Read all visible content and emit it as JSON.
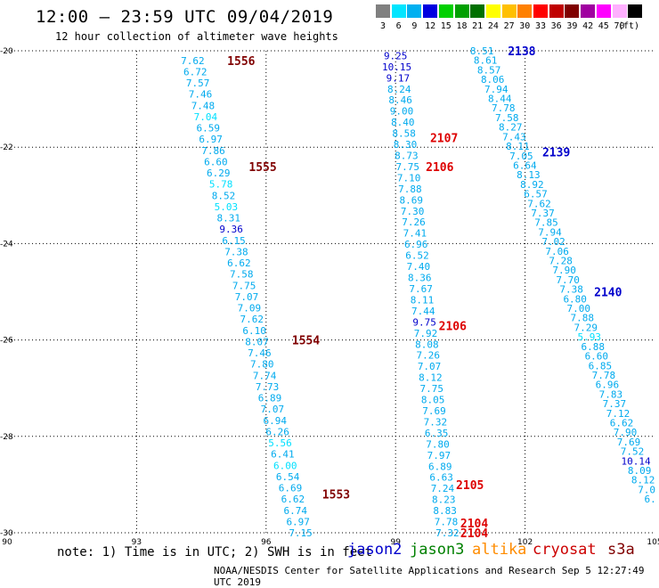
{
  "header": {
    "title": "12:00 – 23:59 UTC 09/04/2019",
    "subtitle": "12 hour collection of altimeter wave heights"
  },
  "legend": {
    "unit": "(ft)",
    "bins": [
      {
        "label": "3",
        "color": "#808080"
      },
      {
        "label": "6",
        "color": "#00e5ff"
      },
      {
        "label": "9",
        "color": "#00b0f0"
      },
      {
        "label": "12",
        "color": "#0000e0"
      },
      {
        "label": "15",
        "color": "#00d000"
      },
      {
        "label": "18",
        "color": "#00a000"
      },
      {
        "label": "21",
        "color": "#007000"
      },
      {
        "label": "24",
        "color": "#ffff00"
      },
      {
        "label": "27",
        "color": "#ffc000"
      },
      {
        "label": "30",
        "color": "#ff8000"
      },
      {
        "label": "33",
        "color": "#ff0000"
      },
      {
        "label": "36",
        "color": "#c00000"
      },
      {
        "label": "39",
        "color": "#800000"
      },
      {
        "label": "42",
        "color": "#a000a0"
      },
      {
        "label": "45",
        "color": "#ff00ff"
      },
      {
        "label": "70",
        "color": "#ffb0ff"
      },
      {
        "label": "",
        "color": "#000000"
      }
    ]
  },
  "footer": {
    "note": "note:  1) Time is in UTC;  2) SWH is in feet",
    "satellites": [
      {
        "name": "jason2",
        "color": "#0000cc"
      },
      {
        "name": "jason3",
        "color": "#008000"
      },
      {
        "name": "altika",
        "color": "#ff8c00"
      },
      {
        "name": "cryosat",
        "color": "#cc0000"
      },
      {
        "name": "s3a",
        "color": "#800000"
      }
    ],
    "credit": "NOAA/NESDIS Center for Satellite Applications and Research    Sep  5 12:27:49 UTC 2019"
  },
  "chart_data": {
    "type": "scatter",
    "xlim": [
      90,
      105
    ],
    "ylim": [
      -30,
      -20
    ],
    "xticks": [
      90,
      93,
      96,
      99,
      102,
      105
    ],
    "yticks": [
      -20,
      -22,
      -24,
      -26,
      -28,
      -30
    ],
    "grid": true,
    "colors": {
      "c1": "#00e0ff",
      "c2": "#00aaee",
      "c3": "#0000cc"
    },
    "passes": [
      {
        "id": "1556",
        "x": 95.1,
        "y": -20.2,
        "color": "#800000"
      },
      {
        "id": "1555",
        "x": 95.6,
        "y": -22.4,
        "color": "#800000"
      },
      {
        "id": "1554",
        "x": 96.6,
        "y": -26.0,
        "color": "#800000"
      },
      {
        "id": "1553",
        "x": 97.3,
        "y": -29.2,
        "color": "#800000"
      },
      {
        "id": "2138",
        "x": 101.6,
        "y": -20.0,
        "color": "#0000cc"
      },
      {
        "id": "2139",
        "x": 102.4,
        "y": -22.1,
        "color": "#0000cc"
      },
      {
        "id": "2140",
        "x": 103.6,
        "y": -25.0,
        "color": "#0000cc"
      },
      {
        "id": "2107",
        "x": 99.8,
        "y": -21.8,
        "color": "#dd0000"
      },
      {
        "id": "2106",
        "x": 99.7,
        "y": -22.4,
        "color": "#dd0000"
      },
      {
        "id": "2106",
        "x": 100.0,
        "y": -25.7,
        "color": "#dd0000"
      },
      {
        "id": "2105",
        "x": 100.4,
        "y": -29.0,
        "color": "#dd0000"
      },
      {
        "id": "2104",
        "x": 100.5,
        "y": -29.8,
        "color": "#dd0000"
      },
      {
        "id": "2104",
        "x": 100.5,
        "y": -30.0,
        "color": "#dd0000"
      }
    ],
    "tracks": [
      {
        "name": "track-1556",
        "x0": 94.3,
        "x1": 96.8,
        "y0": -20.2,
        "y1": -30.0,
        "color": "c2",
        "values": [
          "7.62",
          "6.72",
          "7.57",
          "7.46",
          "7.48",
          "7.04",
          "6.59",
          "6.97",
          "7.86",
          "6.60",
          "6.29",
          "5.78",
          "8.52",
          "5.03",
          "8.31",
          "9.36",
          "6.15",
          "7.38",
          "6.62",
          "7.58",
          "7.75",
          "7.07",
          "7.09",
          "7.62",
          "6.10",
          "8.07",
          "7.46",
          "7.80",
          "7.74",
          "7.73",
          "6.89",
          "7.07",
          "6.94",
          "6.26",
          "5.56",
          "6.41",
          "6.00",
          "6.54",
          "6.69",
          "6.62",
          "6.74",
          "6.97",
          "7.15"
        ],
        "special": {
          "5": "c1",
          "11": "c1",
          "13": "c1",
          "15": "c3",
          "34": "c1",
          "36": "c1"
        }
      },
      {
        "name": "track-2107",
        "x0": 99.0,
        "x1": 100.2,
        "y0": -20.1,
        "y1": -30.0,
        "color": "c2",
        "values": [
          "9.25",
          "10.15",
          "9.17",
          "8.24",
          "8.46",
          "9.00",
          "8.40",
          "8.58",
          "8.30",
          "8.73",
          "7.75",
          "7.10",
          "7.88",
          "8.69",
          "7.30",
          "7.26",
          "7.41",
          "6.96",
          "6.52",
          "7.40",
          "8.36",
          "7.67",
          "8.11",
          "7.44",
          "9.75",
          "7.92",
          "8.08",
          "7.26",
          "7.07",
          "8.12",
          "7.75",
          "8.05",
          "7.69",
          "7.32",
          "6.35",
          "7.80",
          "7.97",
          "6.89",
          "6.63",
          "7.24",
          "8.23",
          "8.83",
          "7.78",
          "7.32"
        ],
        "special": {
          "0": "c3",
          "1": "c3",
          "2": "c3",
          "24": "c3"
        }
      },
      {
        "name": "track-2138",
        "x0": 101.0,
        "x1": 104.9,
        "y0": -20.0,
        "y1": -29.3,
        "color": "c2",
        "values": [
          "8.51",
          "8.61",
          "8.57",
          "8.06",
          "7.94",
          "8.44",
          "7.78",
          "7.58",
          "8.27",
          "7.43",
          "8.11",
          "7.05",
          "6.64",
          "8.13",
          "8.92",
          "6.57",
          "7.62",
          "7.37",
          "7.85",
          "7.94",
          "7.02",
          "7.06",
          "7.28",
          "7.90",
          "7.70",
          "7.38",
          "6.80",
          "7.00",
          "7.88",
          "7.29",
          "5.93",
          "6.88",
          "6.60",
          "6.85",
          "7.78",
          "6.96",
          "7.83",
          "7.37",
          "7.12",
          "6.62",
          "7.90",
          "7.69",
          "7.52",
          "10.14",
          "8.09",
          "8.12",
          "7.0",
          "6."
        ],
        "special": {
          "30": "c1",
          "43": "c3"
        }
      }
    ]
  }
}
